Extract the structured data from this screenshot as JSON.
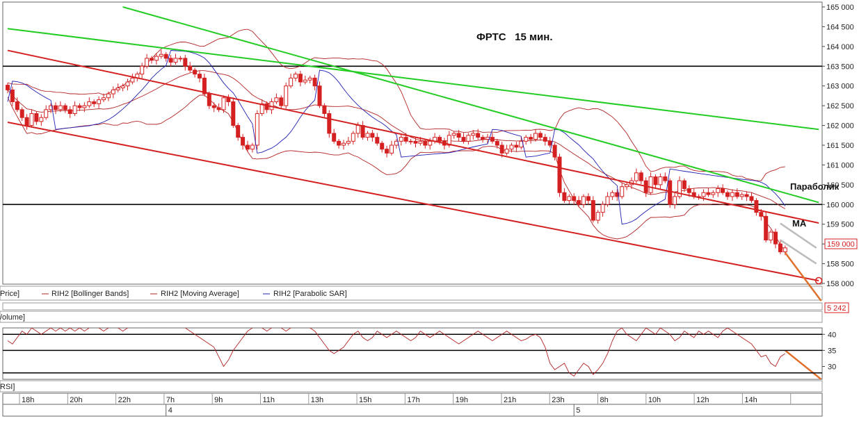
{
  "chart_data": {
    "type": "candlestick",
    "title": "ФРТС   15 мин.",
    "instrument": "RIH2",
    "price_axis": {
      "ylim": [
        158000,
        165000
      ],
      "ticks": [
        158000,
        158500,
        159000,
        159500,
        160000,
        160500,
        161000,
        161500,
        162000,
        162500,
        163000,
        163500,
        164000,
        164500,
        165000
      ],
      "tick_labels": [
        "158 000",
        "158 500",
        "159 000",
        "159 500",
        "160 000",
        "160 500",
        "161 000",
        "161 500",
        "162 000",
        "162 500",
        "163 000",
        "163 500",
        "164 000",
        "164 500",
        "165 000"
      ]
    },
    "last_price_label": "159 000",
    "volume_label": "5 242",
    "legend": {
      "price": "Price]",
      "items": [
        {
          "name": "RIH2 [Bollinger Bands]",
          "color": "#b22222"
        },
        {
          "name": "RIH2 [Moving Average]",
          "color": "#b22222"
        },
        {
          "name": "RIH2 [Parabolic SAR]",
          "color": "#1f1fb4"
        }
      ]
    },
    "panel_labels": {
      "volume": "/olume]",
      "rsi": "RSI]"
    },
    "rsi_axis": {
      "ylim": [
        26,
        42
      ],
      "ticks": [
        30,
        35,
        40
      ],
      "tick_labels": [
        "30",
        "35",
        "40"
      ]
    },
    "time_axis": {
      "labels": [
        "18h",
        "20h",
        "22h",
        "7h",
        "9h",
        "11h",
        "13h",
        "15h",
        "17h",
        "19h",
        "21h",
        "23h",
        "8h",
        "10h",
        "12h",
        "14h"
      ],
      "dates": [
        {
          "label": "4",
          "bar": 33
        },
        {
          "label": "5",
          "bar": 118
        }
      ]
    },
    "annotations": {
      "parabolic": "Параболик",
      "ma": "MA"
    },
    "horizontal_levels": [
      163500,
      160000
    ],
    "rsi_levels": [
      40,
      35,
      28
    ],
    "trendlines": [
      {
        "name": "green-1",
        "color": "#22cc22",
        "from": {
          "bar": 24,
          "price": 165000
        },
        "to": {
          "bar": 169,
          "price": 160050
        }
      },
      {
        "name": "green-2",
        "color": "#22cc22",
        "from": {
          "bar": 0,
          "price": 164450
        },
        "to": {
          "bar": 169,
          "price": 161900
        }
      },
      {
        "name": "red-1",
        "color": "#d42020",
        "from": {
          "bar": 0,
          "price": 163900
        },
        "to": {
          "bar": 169,
          "price": 159530
        }
      },
      {
        "name": "red-2",
        "color": "#d42020",
        "from": {
          "bar": 0,
          "price": 162080
        },
        "to": {
          "bar": 169,
          "price": 158070
        }
      }
    ],
    "projection_lines": [
      {
        "color": "#bbbbbb",
        "from": {
          "bar": 161,
          "price": 159520
        },
        "to": {
          "bar": 168.5,
          "price": 158900
        }
      },
      {
        "color": "#bbbbbb",
        "from": {
          "bar": 161,
          "price": 159100
        },
        "to": {
          "bar": 168.5,
          "price": 158500
        }
      }
    ],
    "forecast_arrows": [
      {
        "panel": "price",
        "color": "#e0702a",
        "from": {
          "bar": 162,
          "price": 158780
        },
        "to": {
          "bar": 169.5,
          "price": 157560
        }
      },
      {
        "panel": "rsi",
        "color": "#e0702a",
        "from": {
          "bar": 162,
          "rsi": 35
        },
        "to": {
          "bar": 169.5,
          "rsi": 26
        }
      }
    ],
    "candles": {
      "closes": [
        162900,
        162600,
        162400,
        162200,
        162000,
        162300,
        162100,
        162200,
        162400,
        162500,
        162400,
        162500,
        162400,
        162300,
        162500,
        162450,
        162500,
        162600,
        162550,
        162650,
        162700,
        162800,
        162900,
        162950,
        163000,
        163100,
        163200,
        163300,
        163500,
        163700,
        163650,
        163750,
        163800,
        163700,
        163600,
        163700,
        163700,
        163500,
        163400,
        163300,
        163200,
        162800,
        162500,
        162450,
        162400,
        162700,
        162600,
        162000,
        161700,
        161500,
        161400,
        161500,
        162300,
        162550,
        162400,
        162600,
        162700,
        162500,
        163000,
        163200,
        163300,
        163100,
        163150,
        163200,
        163000,
        162500,
        162300,
        161800,
        161600,
        161500,
        161550,
        161600,
        161800,
        162000,
        161700,
        161800,
        161700,
        161550,
        161400,
        161300,
        161500,
        161600,
        161700,
        161600,
        161600,
        161550,
        161600,
        161500,
        161600,
        161700,
        161600,
        161500,
        161750,
        161800,
        161700,
        161600,
        161750,
        161800,
        161700,
        161650,
        161700,
        161600,
        161500,
        161300,
        161400,
        161500,
        161450,
        161600,
        161700,
        161650,
        161800,
        161700,
        161600,
        161500,
        161200,
        160300,
        160100,
        160200,
        160100,
        160000,
        160200,
        160100,
        159600,
        159800,
        160000,
        160200,
        160300,
        160200,
        160450,
        160500,
        160600,
        160800,
        160600,
        160300,
        160700,
        160500,
        160700,
        160600,
        160000,
        160200,
        160600,
        160400,
        160300,
        160200,
        160200,
        160300,
        160250,
        160300,
        160400,
        160300,
        160200,
        160300,
        160200,
        160250,
        160200,
        160100,
        159800,
        159700,
        159100,
        159300,
        159000,
        158800,
        158900
      ],
      "rsi": [
        38,
        37,
        39,
        41,
        40,
        42,
        41,
        40,
        41,
        42,
        41,
        42,
        41,
        42,
        41,
        42,
        41,
        42,
        43,
        42,
        41,
        42,
        43,
        42,
        41,
        42,
        43,
        44,
        43,
        42,
        43,
        44,
        43,
        42,
        43,
        44,
        43,
        42,
        41,
        40,
        39,
        38,
        37,
        36,
        33,
        30,
        32,
        35,
        37,
        39,
        41,
        42,
        43,
        42,
        41,
        42,
        43,
        42,
        41,
        42,
        43,
        42,
        43,
        42,
        41,
        39,
        37,
        35,
        34,
        35,
        36,
        38,
        40,
        41,
        39,
        38,
        39,
        41,
        40,
        39,
        40,
        41,
        40,
        39,
        38,
        39,
        41,
        40,
        39,
        40,
        41,
        40,
        39,
        38,
        37,
        38,
        39,
        40,
        41,
        40,
        39,
        38,
        39,
        40,
        41,
        40,
        39,
        38,
        38.5,
        39.5,
        40,
        39,
        36,
        31,
        29,
        30,
        31,
        28,
        27,
        29,
        31,
        30,
        27.5,
        29,
        31,
        34,
        38,
        41,
        42,
        40,
        39,
        38,
        40,
        42,
        41,
        40,
        42,
        41,
        40,
        38,
        39,
        41,
        40,
        39,
        41,
        40,
        41,
        40,
        39,
        41,
        42,
        41,
        40,
        39,
        38,
        37,
        35,
        33,
        33.5,
        31,
        30,
        33,
        34
      ]
    }
  }
}
